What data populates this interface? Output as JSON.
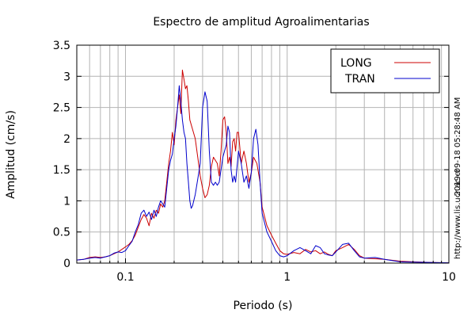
{
  "chart_data": {
    "type": "line",
    "title": "Espectro de amplitud Agroalimentarias",
    "xlabel": "Periodo (s)",
    "ylabel": "Amplitud (cm/s)",
    "x_scale": "log",
    "xlim": [
      0.05,
      10
    ],
    "ylim": [
      0,
      3.5
    ],
    "x_ticks": [
      {
        "value": 0.1,
        "label": "0.1"
      },
      {
        "value": 1,
        "label": "1"
      },
      {
        "value": 10,
        "label": "10"
      }
    ],
    "y_ticks": [
      {
        "value": 0,
        "label": "0"
      },
      {
        "value": 0.5,
        "label": "0.5"
      },
      {
        "value": 1,
        "label": "1"
      },
      {
        "value": 1.5,
        "label": "1.5"
      },
      {
        "value": 2,
        "label": "2"
      },
      {
        "value": 2.5,
        "label": "2.5"
      },
      {
        "value": 3,
        "label": "3"
      },
      {
        "value": 3.5,
        "label": "3.5"
      }
    ],
    "grid": true,
    "legend_position": "top-right",
    "series": [
      {
        "name": "LONG",
        "color": "#cc0000",
        "points": [
          [
            0.05,
            0.05
          ],
          [
            0.055,
            0.06
          ],
          [
            0.06,
            0.09
          ],
          [
            0.065,
            0.1
          ],
          [
            0.07,
            0.09
          ],
          [
            0.075,
            0.1
          ],
          [
            0.08,
            0.12
          ],
          [
            0.085,
            0.15
          ],
          [
            0.09,
            0.18
          ],
          [
            0.095,
            0.22
          ],
          [
            0.1,
            0.26
          ],
          [
            0.105,
            0.3
          ],
          [
            0.11,
            0.36
          ],
          [
            0.115,
            0.45
          ],
          [
            0.12,
            0.58
          ],
          [
            0.125,
            0.7
          ],
          [
            0.13,
            0.78
          ],
          [
            0.135,
            0.72
          ],
          [
            0.14,
            0.6
          ],
          [
            0.145,
            0.8
          ],
          [
            0.15,
            0.72
          ],
          [
            0.155,
            0.85
          ],
          [
            0.16,
            0.8
          ],
          [
            0.165,
            0.95
          ],
          [
            0.17,
            0.9
          ],
          [
            0.175,
            1.0
          ],
          [
            0.18,
            1.3
          ],
          [
            0.185,
            1.6
          ],
          [
            0.19,
            1.8
          ],
          [
            0.195,
            2.1
          ],
          [
            0.2,
            1.9
          ],
          [
            0.205,
            2.3
          ],
          [
            0.21,
            2.5
          ],
          [
            0.215,
            2.7
          ],
          [
            0.22,
            2.4
          ],
          [
            0.225,
            3.1
          ],
          [
            0.23,
            2.95
          ],
          [
            0.235,
            2.8
          ],
          [
            0.24,
            2.85
          ],
          [
            0.245,
            2.6
          ],
          [
            0.25,
            2.3
          ],
          [
            0.26,
            2.15
          ],
          [
            0.27,
            2.0
          ],
          [
            0.28,
            1.7
          ],
          [
            0.29,
            1.4
          ],
          [
            0.3,
            1.2
          ],
          [
            0.31,
            1.05
          ],
          [
            0.32,
            1.1
          ],
          [
            0.33,
            1.25
          ],
          [
            0.34,
            1.55
          ],
          [
            0.35,
            1.7
          ],
          [
            0.36,
            1.65
          ],
          [
            0.37,
            1.6
          ],
          [
            0.38,
            1.4
          ],
          [
            0.39,
            1.8
          ],
          [
            0.4,
            2.3
          ],
          [
            0.41,
            2.35
          ],
          [
            0.42,
            2.1
          ],
          [
            0.43,
            1.6
          ],
          [
            0.44,
            1.7
          ],
          [
            0.45,
            1.55
          ],
          [
            0.46,
            1.95
          ],
          [
            0.47,
            2.0
          ],
          [
            0.48,
            1.8
          ],
          [
            0.49,
            2.1
          ],
          [
            0.5,
            2.1
          ],
          [
            0.52,
            1.6
          ],
          [
            0.54,
            1.8
          ],
          [
            0.56,
            1.6
          ],
          [
            0.58,
            1.3
          ],
          [
            0.6,
            1.45
          ],
          [
            0.62,
            1.7
          ],
          [
            0.65,
            1.6
          ],
          [
            0.68,
            1.3
          ],
          [
            0.7,
            0.9
          ],
          [
            0.75,
            0.6
          ],
          [
            0.8,
            0.45
          ],
          [
            0.85,
            0.32
          ],
          [
            0.9,
            0.2
          ],
          [
            0.95,
            0.15
          ],
          [
            1.0,
            0.14
          ],
          [
            1.1,
            0.17
          ],
          [
            1.2,
            0.15
          ],
          [
            1.3,
            0.22
          ],
          [
            1.4,
            0.18
          ],
          [
            1.5,
            0.2
          ],
          [
            1.6,
            0.15
          ],
          [
            1.7,
            0.18
          ],
          [
            1.8,
            0.14
          ],
          [
            1.9,
            0.12
          ],
          [
            2.0,
            0.2
          ],
          [
            2.2,
            0.25
          ],
          [
            2.4,
            0.3
          ],
          [
            2.6,
            0.22
          ],
          [
            2.8,
            0.12
          ],
          [
            3.0,
            0.08
          ],
          [
            3.5,
            0.07
          ],
          [
            4.0,
            0.06
          ],
          [
            5.0,
            0.03
          ],
          [
            6.0,
            0.02
          ],
          [
            8.0,
            0.01
          ],
          [
            10.0,
            0.005
          ]
        ]
      },
      {
        "name": "TRAN",
        "color": "#0000cc",
        "points": [
          [
            0.05,
            0.05
          ],
          [
            0.055,
            0.06
          ],
          [
            0.06,
            0.08
          ],
          [
            0.065,
            0.09
          ],
          [
            0.07,
            0.08
          ],
          [
            0.075,
            0.1
          ],
          [
            0.08,
            0.12
          ],
          [
            0.085,
            0.16
          ],
          [
            0.09,
            0.18
          ],
          [
            0.095,
            0.17
          ],
          [
            0.1,
            0.2
          ],
          [
            0.105,
            0.28
          ],
          [
            0.11,
            0.35
          ],
          [
            0.115,
            0.5
          ],
          [
            0.12,
            0.62
          ],
          [
            0.125,
            0.8
          ],
          [
            0.13,
            0.85
          ],
          [
            0.135,
            0.75
          ],
          [
            0.14,
            0.82
          ],
          [
            0.145,
            0.7
          ],
          [
            0.15,
            0.85
          ],
          [
            0.155,
            0.75
          ],
          [
            0.16,
            0.9
          ],
          [
            0.165,
            1.0
          ],
          [
            0.17,
            0.95
          ],
          [
            0.175,
            0.9
          ],
          [
            0.18,
            1.2
          ],
          [
            0.185,
            1.5
          ],
          [
            0.19,
            1.65
          ],
          [
            0.195,
            1.75
          ],
          [
            0.2,
            2.0
          ],
          [
            0.205,
            2.2
          ],
          [
            0.21,
            2.5
          ],
          [
            0.215,
            2.85
          ],
          [
            0.22,
            2.6
          ],
          [
            0.225,
            2.3
          ],
          [
            0.23,
            2.1
          ],
          [
            0.235,
            2.0
          ],
          [
            0.24,
            1.6
          ],
          [
            0.245,
            1.3
          ],
          [
            0.25,
            1.0
          ],
          [
            0.255,
            0.88
          ],
          [
            0.26,
            0.92
          ],
          [
            0.27,
            1.1
          ],
          [
            0.28,
            1.35
          ],
          [
            0.29,
            1.6
          ],
          [
            0.3,
            2.5
          ],
          [
            0.31,
            2.75
          ],
          [
            0.32,
            2.6
          ],
          [
            0.33,
            1.8
          ],
          [
            0.34,
            1.3
          ],
          [
            0.35,
            1.25
          ],
          [
            0.36,
            1.3
          ],
          [
            0.37,
            1.25
          ],
          [
            0.38,
            1.3
          ],
          [
            0.39,
            1.5
          ],
          [
            0.4,
            1.7
          ],
          [
            0.42,
            1.9
          ],
          [
            0.43,
            2.2
          ],
          [
            0.44,
            2.1
          ],
          [
            0.45,
            1.5
          ],
          [
            0.46,
            1.3
          ],
          [
            0.47,
            1.4
          ],
          [
            0.48,
            1.3
          ],
          [
            0.5,
            1.8
          ],
          [
            0.52,
            1.6
          ],
          [
            0.54,
            1.3
          ],
          [
            0.56,
            1.4
          ],
          [
            0.58,
            1.2
          ],
          [
            0.6,
            1.45
          ],
          [
            0.62,
            2.0
          ],
          [
            0.64,
            2.15
          ],
          [
            0.66,
            1.9
          ],
          [
            0.68,
            1.3
          ],
          [
            0.7,
            0.8
          ],
          [
            0.75,
            0.5
          ],
          [
            0.8,
            0.35
          ],
          [
            0.85,
            0.2
          ],
          [
            0.9,
            0.12
          ],
          [
            0.95,
            0.1
          ],
          [
            1.0,
            0.12
          ],
          [
            1.1,
            0.2
          ],
          [
            1.2,
            0.25
          ],
          [
            1.3,
            0.2
          ],
          [
            1.4,
            0.15
          ],
          [
            1.5,
            0.28
          ],
          [
            1.6,
            0.25
          ],
          [
            1.7,
            0.15
          ],
          [
            1.8,
            0.13
          ],
          [
            1.9,
            0.12
          ],
          [
            2.0,
            0.18
          ],
          [
            2.2,
            0.3
          ],
          [
            2.4,
            0.32
          ],
          [
            2.6,
            0.2
          ],
          [
            2.8,
            0.1
          ],
          [
            3.0,
            0.08
          ],
          [
            3.5,
            0.09
          ],
          [
            4.0,
            0.06
          ],
          [
            5.0,
            0.02
          ],
          [
            6.0,
            0.015
          ],
          [
            8.0,
            0.01
          ],
          [
            10.0,
            0.005
          ]
        ]
      }
    ]
  },
  "side_texts": {
    "timestamp": "2019-09-18 05:28:48 AM",
    "website": "http://www.lis.ucr.ac.cr"
  }
}
